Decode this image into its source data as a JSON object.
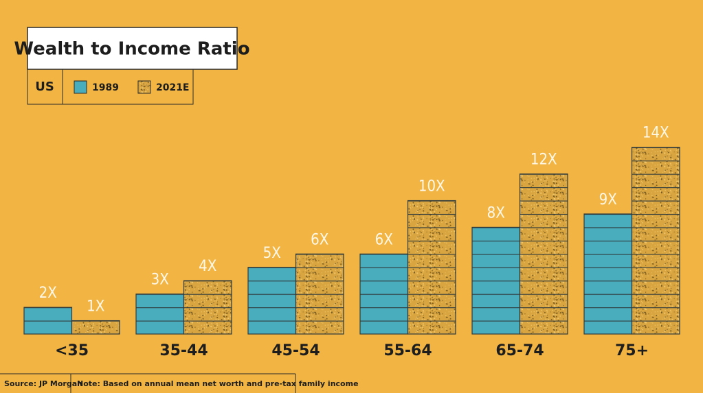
{
  "chart_data": {
    "type": "bar",
    "title": "Wealth to Income Ratio",
    "region_label": "US",
    "categories": [
      "<35",
      "35-44",
      "45-54",
      "55-64",
      "65-74",
      "75+"
    ],
    "series": [
      {
        "name": "1989",
        "color": "#4aadbd",
        "values": [
          2,
          3,
          5,
          6,
          8,
          9
        ],
        "value_labels": [
          "2X",
          "3X",
          "5X",
          "6X",
          "8X",
          "9X"
        ]
      },
      {
        "name": "2021E",
        "color": "#d9a540",
        "values": [
          1,
          4,
          6,
          10,
          12,
          14
        ],
        "value_labels": [
          "1X",
          "4X",
          "6X",
          "10X",
          "12X",
          "14X"
        ]
      }
    ],
    "source": "Source: JP Morgan",
    "note": "Note: Based on annual mean net worth and pre-tax family income"
  }
}
